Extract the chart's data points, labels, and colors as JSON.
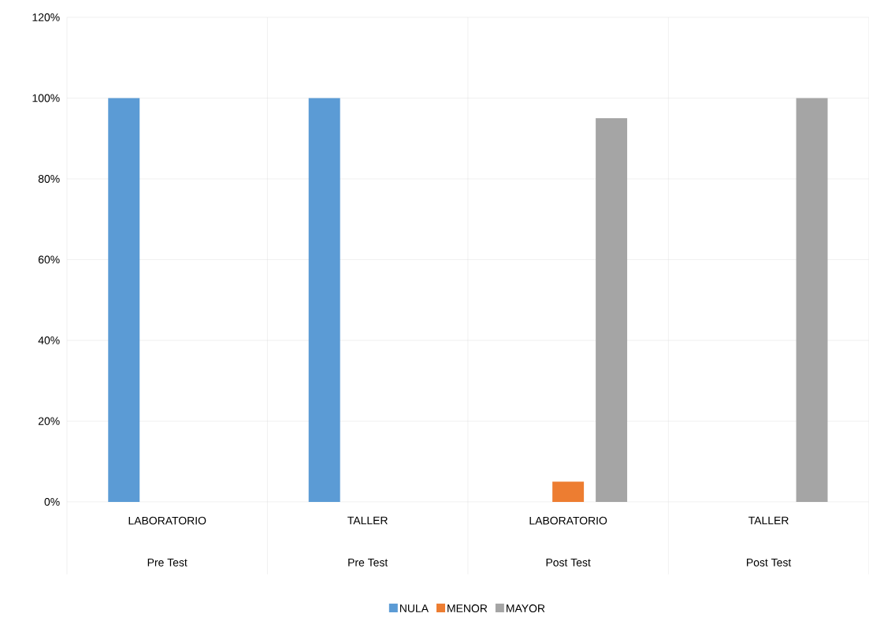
{
  "chart_data": {
    "type": "bar",
    "categories": [
      "LABORATORIO",
      "TALLER",
      "LABORATORIO",
      "TALLER"
    ],
    "annotations": [
      "Pre Test",
      "Pre Test",
      "Post Test",
      "Post Test"
    ],
    "series": [
      {
        "name": "NULA",
        "color": "#5b9bd5",
        "values": [
          100,
          100,
          0,
          0
        ]
      },
      {
        "name": "MENOR",
        "color": "#ed7d31",
        "values": [
          0,
          0,
          5,
          0
        ]
      },
      {
        "name": "MAYOR",
        "color": "#a5a5a5",
        "values": [
          0,
          0,
          95,
          100
        ]
      }
    ],
    "ylim": [
      0,
      120
    ],
    "yticks": [
      {
        "value": 0,
        "label": "0%"
      },
      {
        "value": 20,
        "label": "20%"
      },
      {
        "value": 40,
        "label": "40%"
      },
      {
        "value": 60,
        "label": "60%"
      },
      {
        "value": 80,
        "label": "80%"
      },
      {
        "value": 100,
        "label": "100%"
      },
      {
        "value": 120,
        "label": "120%"
      }
    ],
    "grid": "y",
    "legend": "bottom"
  }
}
